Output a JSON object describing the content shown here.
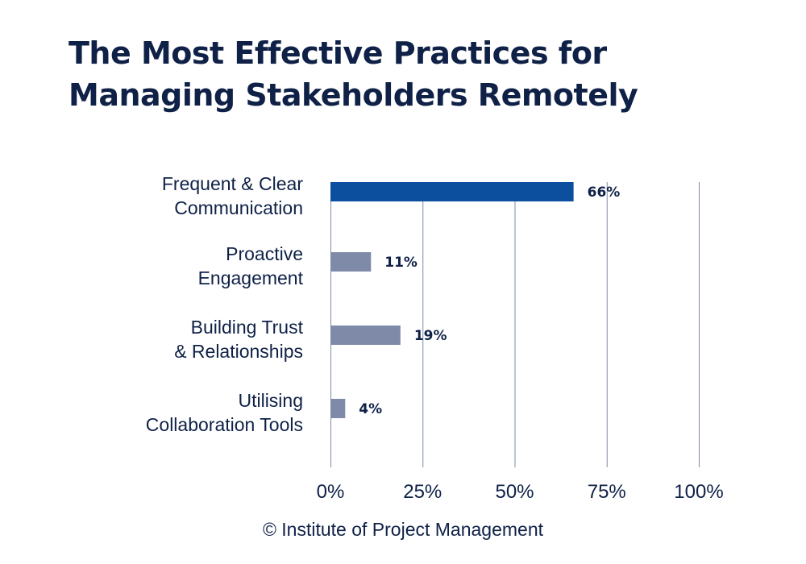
{
  "title": "The Most Effective Practices for Managing Stakeholders Remotely",
  "source": "© Institute of Project Management",
  "chart_data": {
    "type": "bar",
    "orientation": "horizontal",
    "title": "The Most Effective Practices for Managing Stakeholders Remotely",
    "categories": [
      [
        "Frequent & Clear",
        "Communication"
      ],
      [
        "Proactive",
        "Engagement"
      ],
      [
        "Building Trust",
        "& Relationships"
      ],
      [
        "Utilising",
        "Collaboration Tools"
      ]
    ],
    "values": [
      66,
      11,
      19,
      4
    ],
    "value_labels": [
      "66%",
      "11%",
      "19%",
      "4%"
    ],
    "bar_colors": [
      "#0b4f9e",
      "#7f8aa8",
      "#7f8aa8",
      "#7f8aa8"
    ],
    "xlim": [
      0,
      100
    ],
    "xticks": [
      0,
      25,
      50,
      75,
      100
    ],
    "xtick_labels": [
      "0%",
      "25%",
      "50%",
      "75%",
      "100%"
    ],
    "xlabel": "",
    "ylabel": "",
    "grid": true,
    "legend": false
  }
}
